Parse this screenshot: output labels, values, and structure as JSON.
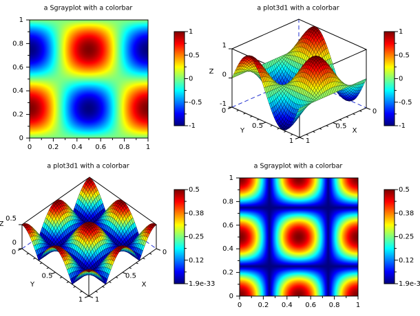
{
  "chart_data": [
    {
      "type": "heatmap",
      "title": "a Sgrayplot with a colorbar",
      "xlim": [
        0,
        1
      ],
      "ylim": [
        0,
        1
      ],
      "x_ticks": [
        "0",
        "0.2",
        "0.4",
        "0.6",
        "0.8",
        "1"
      ],
      "y_ticks": [
        "0",
        "0.2",
        "0.4",
        "0.6",
        "0.8",
        "1"
      ],
      "z_func": "cos(2*pi*x)*sin(2*pi*y)",
      "zlim": [
        -1,
        1
      ],
      "colormap": "jet",
      "colorbar_ticks": [
        "-1",
        "-0.5",
        "0",
        "0.5",
        "1"
      ]
    },
    {
      "type": "surface",
      "title": "a plot3d1 with a colorbar",
      "xlim": [
        0,
        1
      ],
      "ylim": [
        0,
        1
      ],
      "zlim": [
        -1,
        1
      ],
      "x_label": "X",
      "y_label": "Y",
      "z_label": "Z",
      "x_ticks": [
        "0",
        "0.5",
        "1"
      ],
      "y_ticks": [
        "0",
        "0.5",
        "1"
      ],
      "z_ticks": [
        "-1",
        "0",
        "1"
      ],
      "z_func": "cos(2*pi*x)*sin(2*pi*y)",
      "colormap": "jet",
      "colorbar_ticks": [
        "-1",
        "-0.5",
        "0",
        "0.5",
        "1"
      ]
    },
    {
      "type": "surface",
      "title": "a plot3d1 with a colorbar",
      "xlim": [
        0,
        1
      ],
      "ylim": [
        0,
        1
      ],
      "zlim": [
        0,
        0.5
      ],
      "x_label": "X",
      "y_label": "Y",
      "z_label": "Z",
      "x_ticks": [
        "0",
        "0.5",
        "1"
      ],
      "y_ticks": [
        "0",
        "0.5",
        "1"
      ],
      "z_ticks": [
        "0",
        "0.5"
      ],
      "z_func": "0.5*abs(cos(2*pi*x)*cos(2*pi*y))",
      "colormap": "jet",
      "colorbar_ticks": [
        "1.9e-33",
        "0.12",
        "0.25",
        "0.38",
        "0.5"
      ]
    },
    {
      "type": "heatmap",
      "title": "a Sgrayplot with a colorbar",
      "xlim": [
        0,
        1
      ],
      "ylim": [
        0,
        1
      ],
      "x_ticks": [
        "0",
        "0.2",
        "0.4",
        "0.6",
        "0.8",
        "1"
      ],
      "y_ticks": [
        "0",
        "0.2",
        "0.4",
        "0.6",
        "0.8",
        "1"
      ],
      "z_func": "0.5*abs(cos(2*pi*x)*cos(2*pi*y))",
      "zlim": [
        0,
        0.5
      ],
      "colormap": "jet",
      "colorbar_ticks": [
        "1.9e-33",
        "0.12",
        "0.25",
        "0.38",
        "0.5"
      ]
    }
  ]
}
